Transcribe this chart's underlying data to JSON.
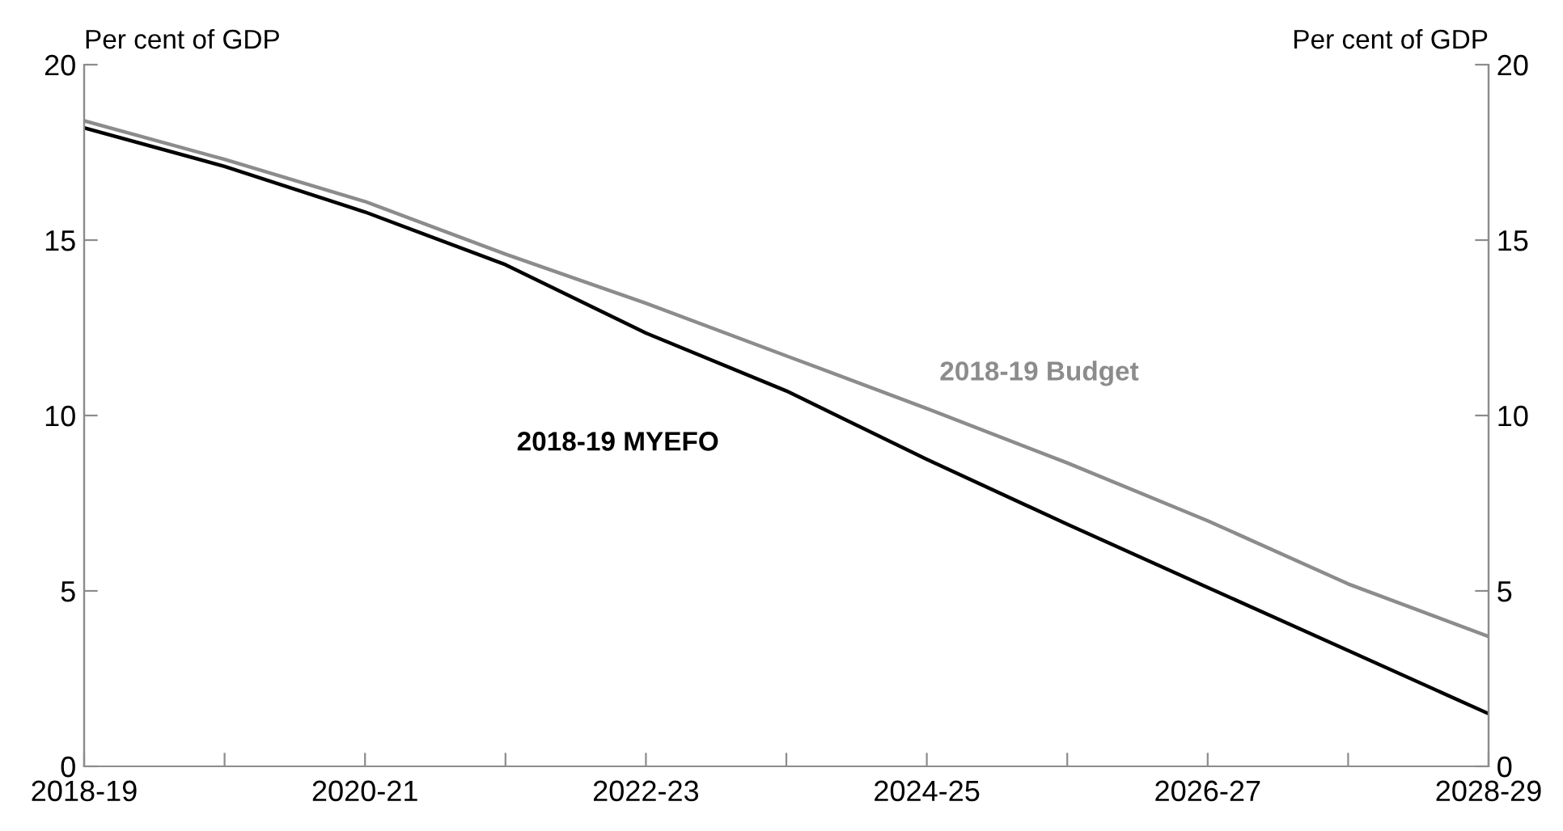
{
  "chart_data": {
    "type": "line",
    "categories": [
      "2018-19",
      null,
      "2020-21",
      null,
      "2022-23",
      null,
      "2024-25",
      null,
      "2026-27",
      null,
      "2028-29"
    ],
    "series": [
      {
        "name": "2018-19 Budget",
        "color": "#8c8c8c",
        "values": [
          18.4,
          17.3,
          16.1,
          14.6,
          13.2,
          11.7,
          10.2,
          8.65,
          7.0,
          5.2,
          3.7
        ]
      },
      {
        "name": "2018-19 MYEFO",
        "color": "#000000",
        "values": [
          18.2,
          17.1,
          15.8,
          14.3,
          12.35,
          10.7,
          8.75,
          6.9,
          5.1,
          3.3,
          1.5
        ]
      }
    ],
    "ylabel": "Per cent of GDP",
    "y2label": "Per cent of GDP",
    "ylim": [
      0,
      20
    ],
    "yticks": [
      0,
      5,
      10,
      15,
      20
    ],
    "y2lim": [
      0,
      20
    ],
    "y2ticks": [
      0,
      5,
      10,
      15,
      20
    ],
    "grid": false,
    "legend": false,
    "marker": "none",
    "line_style": "solid"
  }
}
